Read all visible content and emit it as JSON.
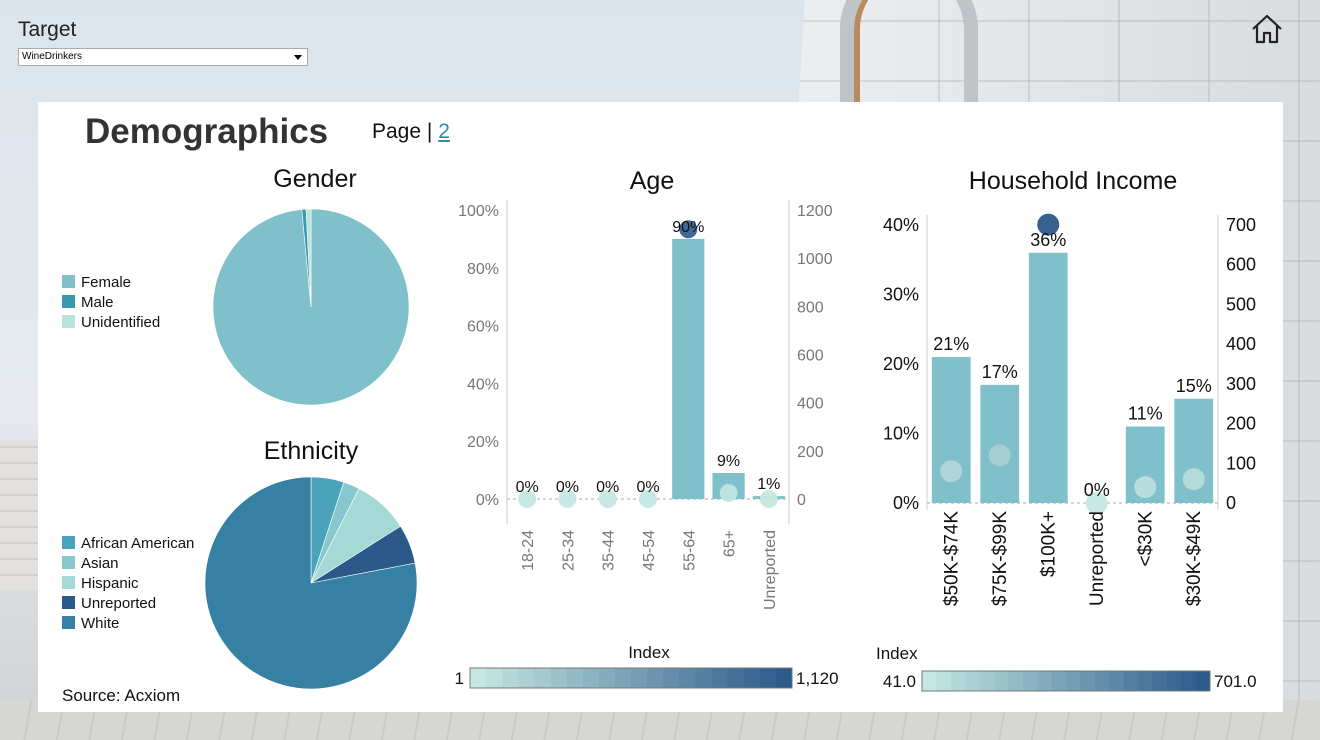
{
  "target": {
    "label": "Target",
    "selected": "WineDrinkers"
  },
  "icons": {
    "home": "home-icon"
  },
  "page": {
    "title": "Demographics",
    "nav_prefix": "Page |",
    "nav_link": "2"
  },
  "source": "Source: Acxiom",
  "colors": {
    "bar": "#7fc0ca",
    "legend_start": "#c4e7e1",
    "legend_end": "#2c5a8a"
  },
  "chart_data": [
    {
      "id": "gender",
      "type": "pie",
      "title": "Gender",
      "slices": [
        {
          "label": "Female",
          "value": 98.5,
          "color": "#7fc0ca"
        },
        {
          "label": "Male",
          "value": 0.7,
          "color": "#3a98b0"
        },
        {
          "label": "Unidentified",
          "value": 0.8,
          "color": "#b9e3d9"
        }
      ],
      "legend_position": "left"
    },
    {
      "id": "ethnicity",
      "type": "pie",
      "title": "Ethnicity",
      "slices": [
        {
          "label": "African American",
          "value": 5,
          "color": "#4aa3bb"
        },
        {
          "label": "Asian",
          "value": 2.5,
          "color": "#87c8cf"
        },
        {
          "label": "Hispanic",
          "value": 8.5,
          "color": "#a3dad6"
        },
        {
          "label": "Unreported",
          "value": 6,
          "color": "#2b5a8a"
        },
        {
          "label": "White",
          "value": 78,
          "color": "#3580a3"
        }
      ],
      "legend_position": "left"
    },
    {
      "id": "age",
      "type": "bar",
      "title": "Age",
      "categories": [
        "18-24",
        "25-34",
        "35-44",
        "45-54",
        "55-64",
        "65+",
        "Unreported"
      ],
      "values": [
        0,
        0,
        0,
        0,
        90,
        9,
        1
      ],
      "value_labels": [
        "0%",
        "0%",
        "0%",
        "0%",
        "90%",
        "9%",
        "1%"
      ],
      "index_values": [
        0,
        0,
        0,
        0,
        1120,
        25,
        0
      ],
      "y_ticks": [
        "0%",
        "20%",
        "40%",
        "60%",
        "80%",
        "100%"
      ],
      "ylim": [
        0,
        100
      ],
      "y2_ticks": [
        "0",
        "200",
        "400",
        "600",
        "800",
        "1000",
        "1200"
      ],
      "y2lim": [
        0,
        1200
      ],
      "index_legend": {
        "title": "Index",
        "min": "1",
        "max": "1,120"
      }
    },
    {
      "id": "income",
      "type": "bar",
      "title": "Household Income",
      "categories": [
        "$50K-$74K",
        "$75K-$99K",
        "$100K+",
        "Unreported",
        "<$30K",
        "$30K-$49K"
      ],
      "values": [
        21,
        17,
        36,
        0,
        11,
        15
      ],
      "value_labels": [
        "21%",
        "17%",
        "36%",
        "0%",
        "11%",
        "15%"
      ],
      "index_values": [
        80,
        120,
        701,
        0,
        40,
        60
      ],
      "y_ticks": [
        "0%",
        "10%",
        "20%",
        "30%",
        "40%"
      ],
      "ylim": [
        0,
        40
      ],
      "y2_ticks": [
        "0",
        "100",
        "200",
        "300",
        "400",
        "500",
        "600",
        "700"
      ],
      "y2lim": [
        0,
        700
      ],
      "index_legend": {
        "title": "Index",
        "min": "41.0",
        "max": "701.0"
      }
    }
  ]
}
